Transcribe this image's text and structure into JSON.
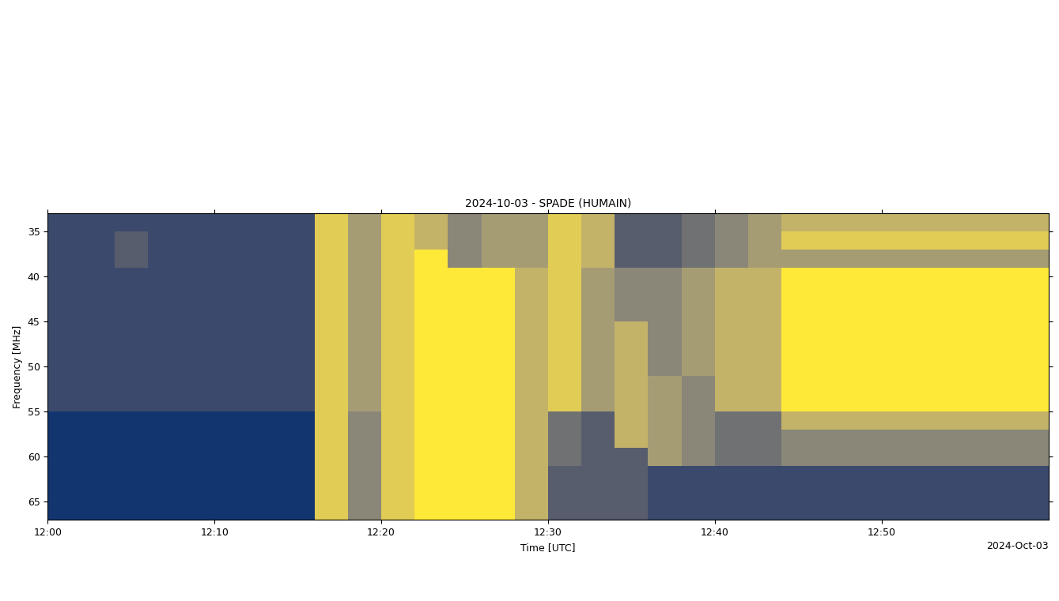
{
  "chart_data": {
    "type": "heatmap",
    "title": "2024-10-03 - SPADE (HUMAIN)",
    "x_label": "Time [UTC]",
    "y_label": "Frequency [MHz]",
    "date_label": "2024-Oct-03",
    "color": "cividis",
    "xlim": [
      0,
      60
    ],
    "xticks": [
      {
        "value": 0,
        "label": "12:00"
      },
      {
        "value": 10,
        "label": "12:10"
      },
      {
        "value": 20,
        "label": "12:20"
      },
      {
        "value": 30,
        "label": "12:30"
      },
      {
        "value": 40,
        "label": "12:40"
      },
      {
        "value": 50,
        "label": "12:50"
      }
    ],
    "ylim": [
      67,
      33
    ],
    "yticks": [
      35,
      40,
      45,
      50,
      55,
      60,
      65
    ],
    "x_edges": [
      0,
      2,
      4,
      6,
      8,
      10,
      12,
      14,
      16,
      18,
      20,
      22,
      24,
      26,
      28,
      30,
      32,
      34,
      36,
      38,
      40,
      42,
      44,
      46,
      48,
      50,
      52,
      54,
      56,
      58,
      60
    ],
    "y_edges": [
      33,
      35,
      37,
      39,
      41,
      43,
      45,
      47,
      49,
      51,
      53,
      55,
      57,
      59,
      61,
      63,
      65,
      67
    ],
    "cell_range": [
      0,
      9
    ],
    "cells": [
      [
        2,
        2,
        2,
        2,
        2,
        2,
        2,
        2,
        8,
        6,
        8,
        7,
        5,
        6,
        6,
        8,
        7,
        3,
        3,
        4,
        5,
        6,
        7,
        7,
        7,
        7,
        7,
        7,
        7,
        7
      ],
      [
        2,
        2,
        3,
        2,
        2,
        2,
        2,
        2,
        8,
        6,
        8,
        7,
        5,
        6,
        6,
        8,
        7,
        3,
        3,
        4,
        5,
        6,
        8,
        8,
        8,
        8,
        8,
        8,
        8,
        8
      ],
      [
        2,
        2,
        3,
        2,
        2,
        2,
        2,
        2,
        8,
        6,
        8,
        9,
        5,
        6,
        6,
        8,
        7,
        3,
        3,
        4,
        5,
        6,
        6,
        6,
        6,
        6,
        6,
        6,
        6,
        6
      ],
      [
        2,
        2,
        2,
        2,
        2,
        2,
        2,
        2,
        8,
        6,
        8,
        9,
        9,
        9,
        7,
        8,
        6,
        5,
        5,
        6,
        7,
        7,
        9,
        9,
        9,
        9,
        9,
        9,
        9,
        9
      ],
      [
        2,
        2,
        2,
        2,
        2,
        2,
        2,
        2,
        8,
        6,
        8,
        9,
        9,
        9,
        7,
        8,
        6,
        5,
        5,
        6,
        7,
        7,
        9,
        9,
        9,
        9,
        9,
        9,
        9,
        9
      ],
      [
        2,
        2,
        2,
        2,
        2,
        2,
        2,
        2,
        8,
        6,
        8,
        9,
        9,
        9,
        7,
        8,
        6,
        5,
        5,
        6,
        7,
        7,
        9,
        9,
        9,
        9,
        9,
        9,
        9,
        9
      ],
      [
        2,
        2,
        2,
        2,
        2,
        2,
        2,
        2,
        8,
        6,
        8,
        9,
        9,
        9,
        7,
        8,
        6,
        7,
        5,
        6,
        7,
        7,
        9,
        9,
        9,
        9,
        9,
        9,
        9,
        9
      ],
      [
        2,
        2,
        2,
        2,
        2,
        2,
        2,
        2,
        8,
        6,
        8,
        9,
        9,
        9,
        7,
        8,
        6,
        7,
        5,
        6,
        7,
        7,
        9,
        9,
        9,
        9,
        9,
        9,
        9,
        9
      ],
      [
        2,
        2,
        2,
        2,
        2,
        2,
        2,
        2,
        8,
        6,
        8,
        9,
        9,
        9,
        7,
        8,
        6,
        7,
        5,
        6,
        7,
        7,
        9,
        9,
        9,
        9,
        9,
        9,
        9,
        9
      ],
      [
        2,
        2,
        2,
        2,
        2,
        2,
        2,
        2,
        8,
        6,
        8,
        9,
        9,
        9,
        7,
        8,
        6,
        7,
        6,
        5,
        7,
        7,
        9,
        9,
        9,
        9,
        9,
        9,
        9,
        9
      ],
      [
        2,
        2,
        2,
        2,
        2,
        2,
        2,
        2,
        8,
        6,
        8,
        9,
        9,
        9,
        7,
        8,
        6,
        7,
        6,
        5,
        7,
        7,
        9,
        9,
        9,
        9,
        9,
        9,
        9,
        9
      ],
      [
        1,
        1,
        1,
        1,
        1,
        1,
        1,
        1,
        8,
        5,
        8,
        9,
        9,
        9,
        7,
        4,
        3,
        7,
        6,
        5,
        4,
        4,
        7,
        7,
        7,
        7,
        7,
        7,
        7,
        7
      ],
      [
        1,
        1,
        1,
        1,
        1,
        1,
        1,
        1,
        8,
        5,
        8,
        9,
        9,
        9,
        7,
        4,
        3,
        7,
        6,
        5,
        4,
        4,
        5,
        5,
        5,
        5,
        5,
        5,
        5,
        5
      ],
      [
        1,
        1,
        1,
        1,
        1,
        1,
        1,
        1,
        8,
        5,
        8,
        9,
        9,
        9,
        7,
        4,
        3,
        3,
        6,
        5,
        4,
        4,
        5,
        5,
        5,
        5,
        5,
        5,
        5,
        5
      ],
      [
        1,
        1,
        1,
        1,
        1,
        1,
        1,
        1,
        8,
        5,
        8,
        9,
        9,
        9,
        7,
        3,
        3,
        3,
        2,
        2,
        2,
        2,
        2,
        2,
        2,
        2,
        2,
        2,
        2,
        2
      ],
      [
        1,
        1,
        1,
        1,
        1,
        1,
        1,
        1,
        8,
        5,
        8,
        9,
        9,
        9,
        7,
        3,
        3,
        3,
        2,
        2,
        2,
        2,
        2,
        2,
        2,
        2,
        2,
        2,
        2,
        2
      ],
      [
        1,
        1,
        1,
        1,
        1,
        1,
        1,
        1,
        8,
        5,
        8,
        9,
        9,
        9,
        7,
        3,
        3,
        3,
        2,
        2,
        2,
        2,
        2,
        2,
        2,
        2,
        2,
        2,
        2,
        2
      ]
    ]
  }
}
